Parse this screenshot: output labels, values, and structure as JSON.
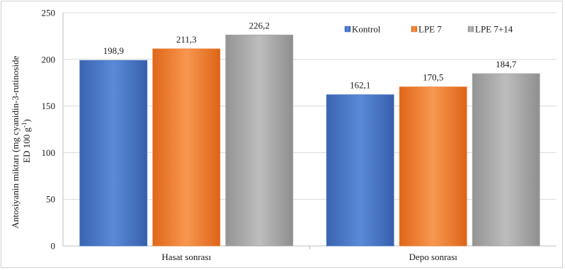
{
  "chart_data": {
    "type": "bar",
    "categories": [
      "Hasat sonrası",
      "Depo sonrası"
    ],
    "series": [
      {
        "name": "Kontrol",
        "values": [
          198.9,
          162.1
        ],
        "labels": [
          "198,9",
          "162,1"
        ],
        "color": "#4472c4"
      },
      {
        "name": "LPE 7",
        "values": [
          211.3,
          170.5
        ],
        "labels": [
          "211,3",
          "170,5"
        ],
        "color": "#ed7d31"
      },
      {
        "name": "LPE 7+14",
        "values": [
          226.2,
          184.7
        ],
        "labels": [
          "226,2",
          "184,7"
        ],
        "color": "#a5a5a5"
      }
    ],
    "ylabel_line1": "Antosiyanin miktarı (mg cyanidin-3-rutinoside",
    "ylabel_line2": "ED 100 g",
    "ylabel_sup": "-1",
    "ylabel_close": ")",
    "ylim": [
      0,
      250
    ],
    "yticks": [
      0,
      50,
      100,
      150,
      200,
      250
    ],
    "grid": true,
    "legend_position": "top-right"
  }
}
